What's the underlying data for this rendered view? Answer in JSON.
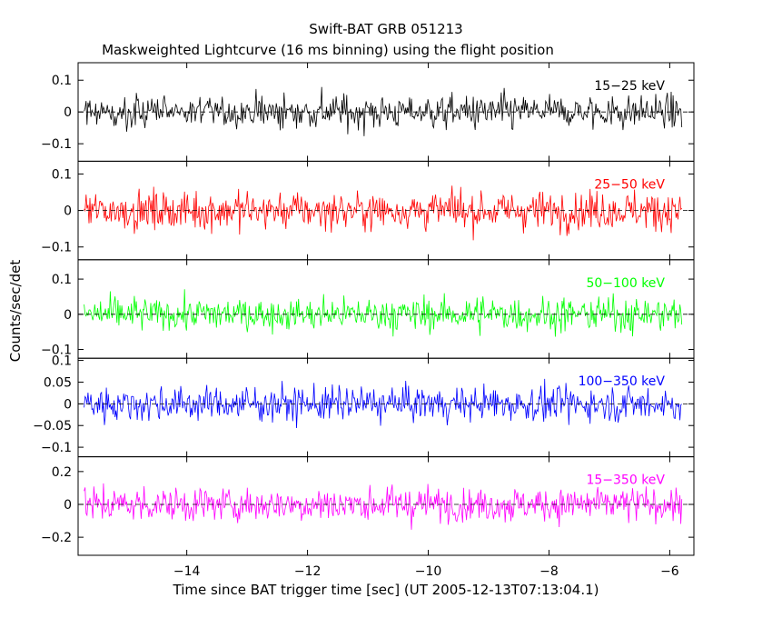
{
  "chart_data": {
    "type": "line",
    "title": "Swift-BAT GRB 051213",
    "subtitle": "Maskweighted Lightcurve (16 ms binning) using the flight position",
    "xlabel": "Time since BAT trigger time [sec] (UT 2005-12-13T07:13:04.1)",
    "ylabel": "Counts/sec/det",
    "xlim": [
      -15.8,
      -5.6
    ],
    "x_ticks": [
      -14,
      -12,
      -10,
      -8,
      -6
    ],
    "x_tick_labels": [
      "−14",
      "−12",
      "−10",
      "−8",
      "−6"
    ],
    "data_x_range": [
      -15.7,
      -5.8
    ],
    "bin_size_sec": 0.016,
    "panels": [
      {
        "name": "15-25 keV",
        "label": "15−25 keV",
        "color": "#000000",
        "ylim": [
          -0.155,
          0.155
        ],
        "y_ticks": [
          0.1,
          0,
          -0.1
        ],
        "y_tick_labels": [
          "0.1",
          "0",
          "−0.1"
        ],
        "noise_amplitude": 0.05
      },
      {
        "name": "25-50 keV",
        "label": "25−50 keV",
        "color": "#ff0000",
        "ylim": [
          -0.135,
          0.135
        ],
        "y_ticks": [
          0.1,
          0,
          -0.1
        ],
        "y_tick_labels": [
          "0.1",
          "0",
          "−0.1"
        ],
        "noise_amplitude": 0.05
      },
      {
        "name": "50-100 keV",
        "label": "50−100 keV",
        "color": "#00ff00",
        "ylim": [
          -0.125,
          0.155
        ],
        "y_ticks": [
          0.1,
          0,
          -0.1
        ],
        "y_tick_labels": [
          "0.1",
          "0",
          "−0.1"
        ],
        "noise_amplitude": 0.045
      },
      {
        "name": "100-350 keV",
        "label": "100−350 keV",
        "color": "#0000ff",
        "ylim": [
          -0.122,
          0.105
        ],
        "y_ticks": [
          0.1,
          0.05,
          0,
          -0.05,
          -0.1
        ],
        "y_tick_labels": [
          "0.1",
          "0.05",
          "0",
          "−0.05",
          "−0.1"
        ],
        "noise_amplitude": 0.038
      },
      {
        "name": "15-350 keV",
        "label": "15−350 keV",
        "color": "#ff00ff",
        "ylim": [
          -0.31,
          0.29
        ],
        "y_ticks": [
          0.2,
          0,
          -0.2
        ],
        "y_tick_labels": [
          "0.2",
          "0",
          "−0.2"
        ],
        "noise_amplitude": 0.1
      }
    ]
  }
}
